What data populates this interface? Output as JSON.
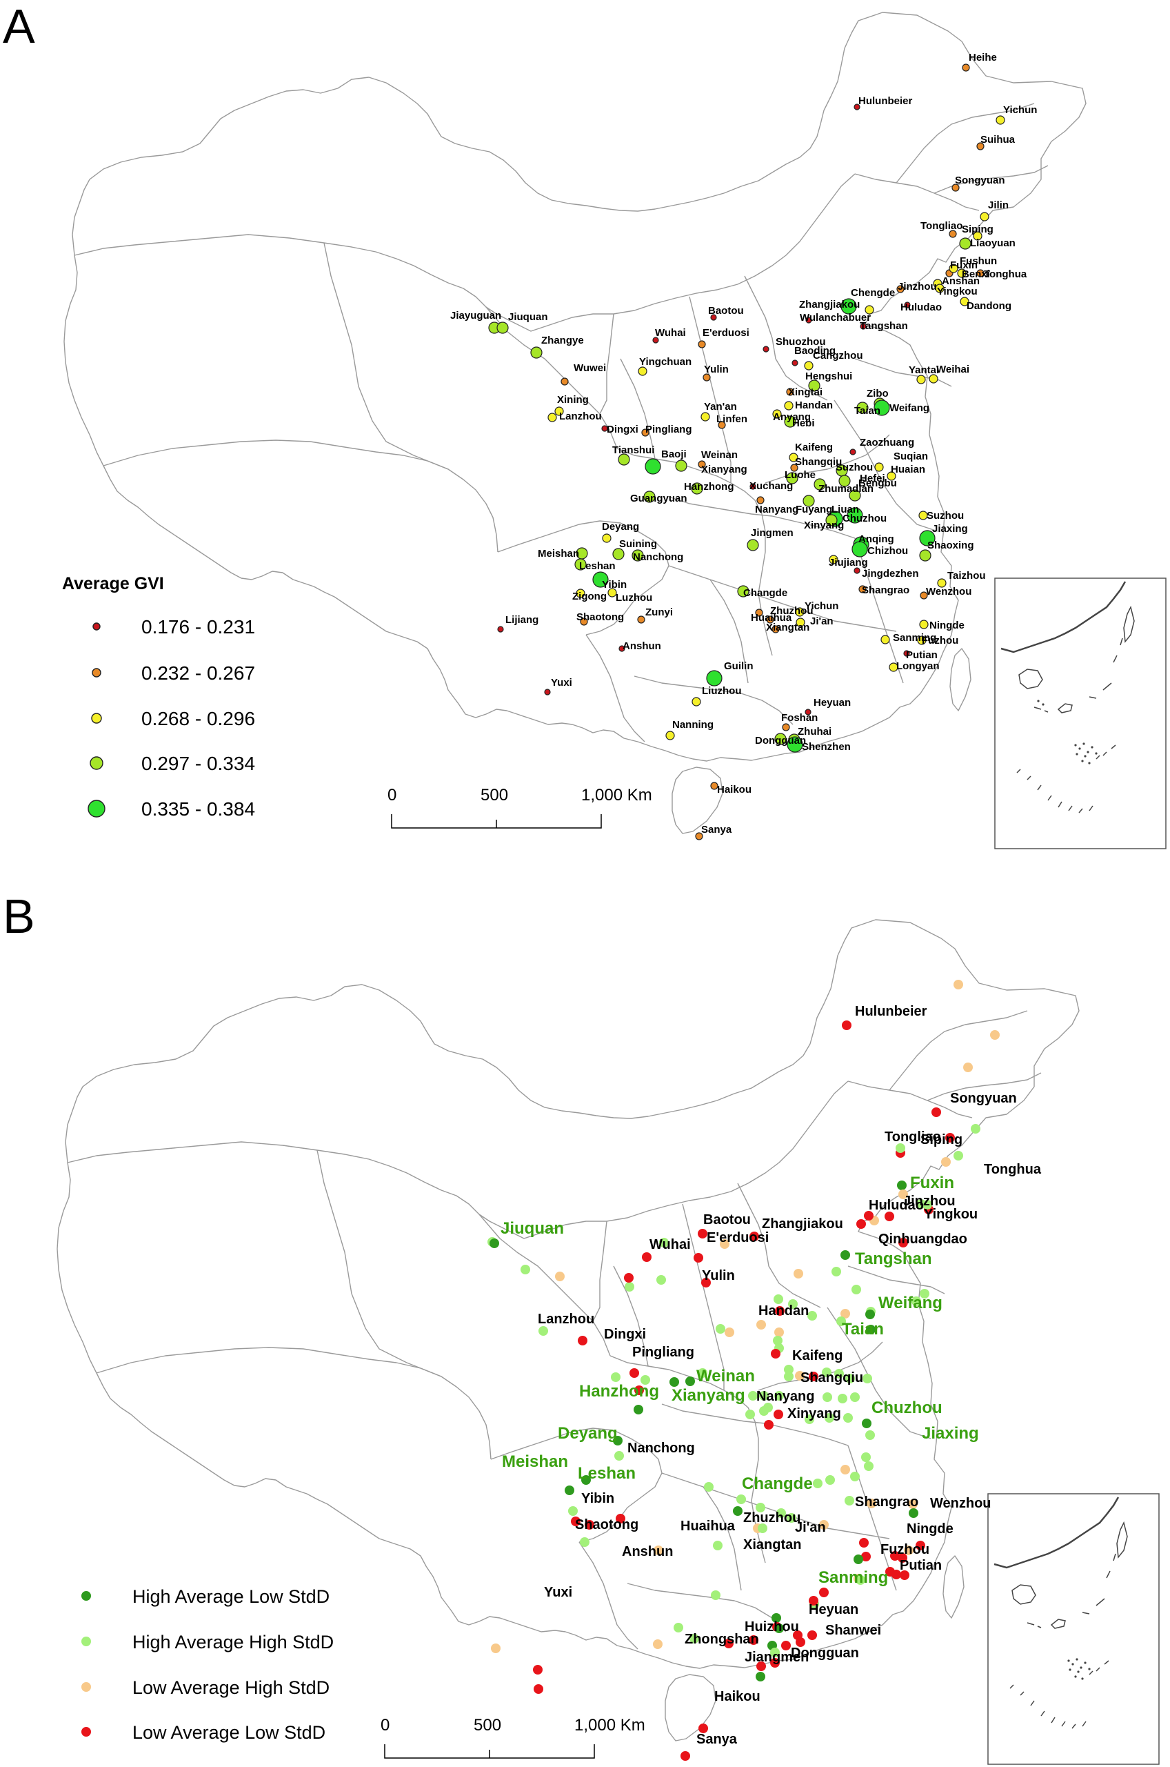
{
  "panel_a": {
    "letter": "A",
    "legend_title": "Average GVI",
    "legend": [
      {
        "label": "0.176 - 0.231",
        "color": "#c8161d",
        "r": 4
      },
      {
        "label": "0.232 - 0.267",
        "color": "#e88a28",
        "r": 5
      },
      {
        "label": "0.268 - 0.296",
        "color": "#f5f02a",
        "r": 6
      },
      {
        "label": "0.297 - 0.334",
        "color": "#a6e628",
        "r": 8
      },
      {
        "label": "0.335 - 0.384",
        "color": "#2fe02f",
        "r": 11
      }
    ],
    "scale": {
      "ticks": [
        "0",
        "500",
        "1,000 Km"
      ]
    },
    "cities": [
      {
        "name": "Heihe",
        "c": 1
      },
      {
        "name": "Hulunbeier",
        "c": 0
      },
      {
        "name": "Yichun",
        "c": 2
      },
      {
        "name": "Suihua",
        "c": 1
      },
      {
        "name": "Songyuan",
        "c": 1
      },
      {
        "name": "Jilin",
        "c": 2
      },
      {
        "name": "Tongliao",
        "c": 1
      },
      {
        "name": "Siping",
        "c": 2
      },
      {
        "name": "Liaoyuan",
        "c": 3
      },
      {
        "name": "Fuxin",
        "c": 1
      },
      {
        "name": "Fushun",
        "c": 2
      },
      {
        "name": "Benxi",
        "c": 2
      },
      {
        "name": "Tonghua",
        "c": 1
      },
      {
        "name": "Jinzhou",
        "c": 1
      },
      {
        "name": "Anshan",
        "c": 2
      },
      {
        "name": "Yingkou",
        "c": 2
      },
      {
        "name": "Huludao",
        "c": 0
      },
      {
        "name": "Dandong",
        "c": 2
      },
      {
        "name": "Chengde",
        "c": 2
      },
      {
        "name": "Zhangjiakou",
        "c": 4
      },
      {
        "name": "Wulanchabuer",
        "c": 0
      },
      {
        "name": "Tangshan",
        "c": 0
      },
      {
        "name": "Baotou",
        "c": 0
      },
      {
        "name": "Wuhai",
        "c": 0
      },
      {
        "name": "E'erduosi",
        "c": 1
      },
      {
        "name": "Jiayuguan",
        "c": 3
      },
      {
        "name": "Jiuquan",
        "c": 3
      },
      {
        "name": "Zhangye",
        "c": 3
      },
      {
        "name": "Wuwei",
        "c": 1
      },
      {
        "name": "Yingchuan",
        "c": 2
      },
      {
        "name": "Shuozhou",
        "c": 0
      },
      {
        "name": "Baoding",
        "c": 0
      },
      {
        "name": "Cangzhou",
        "c": 2
      },
      {
        "name": "Yulin",
        "c": 1
      },
      {
        "name": "Yantai",
        "c": 2
      },
      {
        "name": "Weihai",
        "c": 2
      },
      {
        "name": "Hengshui",
        "c": 3
      },
      {
        "name": "Xingtai",
        "c": 1
      },
      {
        "name": "Xining",
        "c": 2
      },
      {
        "name": "Lanzhou",
        "c": 2
      },
      {
        "name": "Handan",
        "c": 2
      },
      {
        "name": "Zibo",
        "c": 3
      },
      {
        "name": "Weifang",
        "c": 4
      },
      {
        "name": "Taian",
        "c": 3
      },
      {
        "name": "Dingxi",
        "c": 0
      },
      {
        "name": "Pingliang",
        "c": 1
      },
      {
        "name": "Yan'an",
        "c": 2
      },
      {
        "name": "Linfen",
        "c": 1
      },
      {
        "name": "Anyang",
        "c": 2
      },
      {
        "name": "Hebi",
        "c": 3
      },
      {
        "name": "Zaozhuang",
        "c": 0
      },
      {
        "name": "Tianshui",
        "c": 3
      },
      {
        "name": "Baoji",
        "c": 4
      },
      {
        "name": "Weinan",
        "c": 1
      },
      {
        "name": "Xianyang",
        "c": 3
      },
      {
        "name": "Kaifeng",
        "c": 2
      },
      {
        "name": "Suqian",
        "c": 2
      },
      {
        "name": "Shangqiu",
        "c": 1
      },
      {
        "name": "Suzhou",
        "c": 3
      },
      {
        "name": "Huaian",
        "c": 2
      },
      {
        "name": "Bengbu",
        "c": 3
      },
      {
        "name": "Luohe",
        "c": 3
      },
      {
        "name": "Hanzhong",
        "c": 3
      },
      {
        "name": "Xuchang",
        "c": 0
      },
      {
        "name": "Zhumadian",
        "c": 3
      },
      {
        "name": "Hefei",
        "c": 3
      },
      {
        "name": "Guangyuan",
        "c": 3
      },
      {
        "name": "Nanyang",
        "c": 1
      },
      {
        "name": "Fuyang",
        "c": 3
      },
      {
        "name": "Liuan",
        "c": 4
      },
      {
        "name": "Chuzhou",
        "c": 4
      },
      {
        "name": "Suzhou",
        "c": 2
      },
      {
        "name": "Xinyang",
        "c": 3
      },
      {
        "name": "Jiaxing",
        "c": 4
      },
      {
        "name": "Deyang",
        "c": 2
      },
      {
        "name": "Jingmen",
        "c": 3
      },
      {
        "name": "Anqing",
        "c": 4
      },
      {
        "name": "Chizhou",
        "c": 4
      },
      {
        "name": "Shaoxing",
        "c": 3
      },
      {
        "name": "Suining",
        "c": 3
      },
      {
        "name": "Meishan",
        "c": 3
      },
      {
        "name": "Nanchong",
        "c": 3
      },
      {
        "name": "Jiujiang",
        "c": 2
      },
      {
        "name": "Leshan",
        "c": 3
      },
      {
        "name": "Jingdezhen",
        "c": 0
      },
      {
        "name": "Taizhou",
        "c": 2
      },
      {
        "name": "Yibin",
        "c": 4
      },
      {
        "name": "Changde",
        "c": 3
      },
      {
        "name": "Shangrao",
        "c": 1
      },
      {
        "name": "Wenzhou",
        "c": 1
      },
      {
        "name": "Zigong",
        "c": 2
      },
      {
        "name": "Luzhou",
        "c": 2
      },
      {
        "name": "Yichun",
        "c": 2
      },
      {
        "name": "Lijiang",
        "c": 0
      },
      {
        "name": "Shaotong",
        "c": 1
      },
      {
        "name": "Zunyi",
        "c": 1
      },
      {
        "name": "Huaihua",
        "c": 1
      },
      {
        "name": "Zhuzhou",
        "c": 1
      },
      {
        "name": "Ji'an",
        "c": 2
      },
      {
        "name": "Ningde",
        "c": 2
      },
      {
        "name": "Xiangtan",
        "c": 1
      },
      {
        "name": "Fuzhou",
        "c": 2
      },
      {
        "name": "Anshun",
        "c": 0
      },
      {
        "name": "Sanming",
        "c": 2
      },
      {
        "name": "Putian",
        "c": 0
      },
      {
        "name": "Guilin",
        "c": 4
      },
      {
        "name": "Longyan",
        "c": 2
      },
      {
        "name": "Yuxi",
        "c": 0
      },
      {
        "name": "Liuzhou",
        "c": 2
      },
      {
        "name": "Heyuan",
        "c": 0
      },
      {
        "name": "Foshan",
        "c": 1
      },
      {
        "name": "Nanning",
        "c": 2
      },
      {
        "name": "Dongguan",
        "c": 3
      },
      {
        "name": "Zhuhai",
        "c": 3
      },
      {
        "name": "Shenzhen",
        "c": 4
      },
      {
        "name": "Haikou",
        "c": 1
      },
      {
        "name": "Sanya",
        "c": 1
      }
    ]
  },
  "panel_b": {
    "letter": "B",
    "legend": [
      {
        "label": "High Average Low StdD",
        "color": "#2e9a1e"
      },
      {
        "label": "High Average High StdD",
        "color": "#a3f07a"
      },
      {
        "label": "Low Average High StdD",
        "color": "#f8c98a"
      },
      {
        "label": "Low Average Low StdD",
        "color": "#e8141a"
      }
    ],
    "scale": {
      "ticks": [
        "0",
        "500",
        "1,000 Km"
      ]
    },
    "labels": [
      {
        "name": "Hulunbeier",
        "g": false
      },
      {
        "name": "Songyuan",
        "g": false
      },
      {
        "name": "Tongliao",
        "g": false
      },
      {
        "name": "Siping",
        "g": false
      },
      {
        "name": "Tonghua",
        "g": false
      },
      {
        "name": "Fuxin",
        "g": true
      },
      {
        "name": "Jinzhou",
        "g": false
      },
      {
        "name": "Huludao",
        "g": false
      },
      {
        "name": "Yingkou",
        "g": false
      },
      {
        "name": "Qinhuangdao",
        "g": false
      },
      {
        "name": "Baotou",
        "g": false
      },
      {
        "name": "Zhangjiakou",
        "g": false
      },
      {
        "name": "E'erduosi",
        "g": false
      },
      {
        "name": "Wuhai",
        "g": false
      },
      {
        "name": "Jiuquan",
        "g": true
      },
      {
        "name": "Tangshan",
        "g": true
      },
      {
        "name": "Yulin",
        "g": false
      },
      {
        "name": "Weifang",
        "g": true
      },
      {
        "name": "Handan",
        "g": false
      },
      {
        "name": "Lanzhou",
        "g": false
      },
      {
        "name": "Taian",
        "g": true
      },
      {
        "name": "Dingxi",
        "g": false
      },
      {
        "name": "Pingliang",
        "g": false
      },
      {
        "name": "Kaifeng",
        "g": false
      },
      {
        "name": "Weinan",
        "g": true
      },
      {
        "name": "Shangqiu",
        "g": false
      },
      {
        "name": "Hanzhong",
        "g": true
      },
      {
        "name": "Xianyang",
        "g": true
      },
      {
        "name": "Nanyang",
        "g": false
      },
      {
        "name": "Chuzhou",
        "g": true
      },
      {
        "name": "Xinyang",
        "g": false
      },
      {
        "name": "Deyang",
        "g": true
      },
      {
        "name": "Jiaxing",
        "g": true
      },
      {
        "name": "Nanchong",
        "g": false
      },
      {
        "name": "Meishan",
        "g": true
      },
      {
        "name": "Leshan",
        "g": true
      },
      {
        "name": "Changde",
        "g": true
      },
      {
        "name": "Yibin",
        "g": false
      },
      {
        "name": "Shangrao",
        "g": false
      },
      {
        "name": "Wenzhou",
        "g": false
      },
      {
        "name": "Shaotong",
        "g": false
      },
      {
        "name": "Huaihua",
        "g": false
      },
      {
        "name": "Zhuzhou",
        "g": false
      },
      {
        "name": "Ji'an",
        "g": false
      },
      {
        "name": "Ningde",
        "g": false
      },
      {
        "name": "Xiangtan",
        "g": false
      },
      {
        "name": "Anshun",
        "g": false
      },
      {
        "name": "Fuzhou",
        "g": false
      },
      {
        "name": "Putian",
        "g": false
      },
      {
        "name": "Sanming",
        "g": true
      },
      {
        "name": "Yuxi",
        "g": false
      },
      {
        "name": "Heyuan",
        "g": false
      },
      {
        "name": "Huizhou",
        "g": false
      },
      {
        "name": "Shanwei",
        "g": false
      },
      {
        "name": "Zhongshan",
        "g": false
      },
      {
        "name": "Jiangmen",
        "g": false
      },
      {
        "name": "Dongguan",
        "g": false
      },
      {
        "name": "Haikou",
        "g": false
      },
      {
        "name": "Sanya",
        "g": false
      }
    ]
  }
}
